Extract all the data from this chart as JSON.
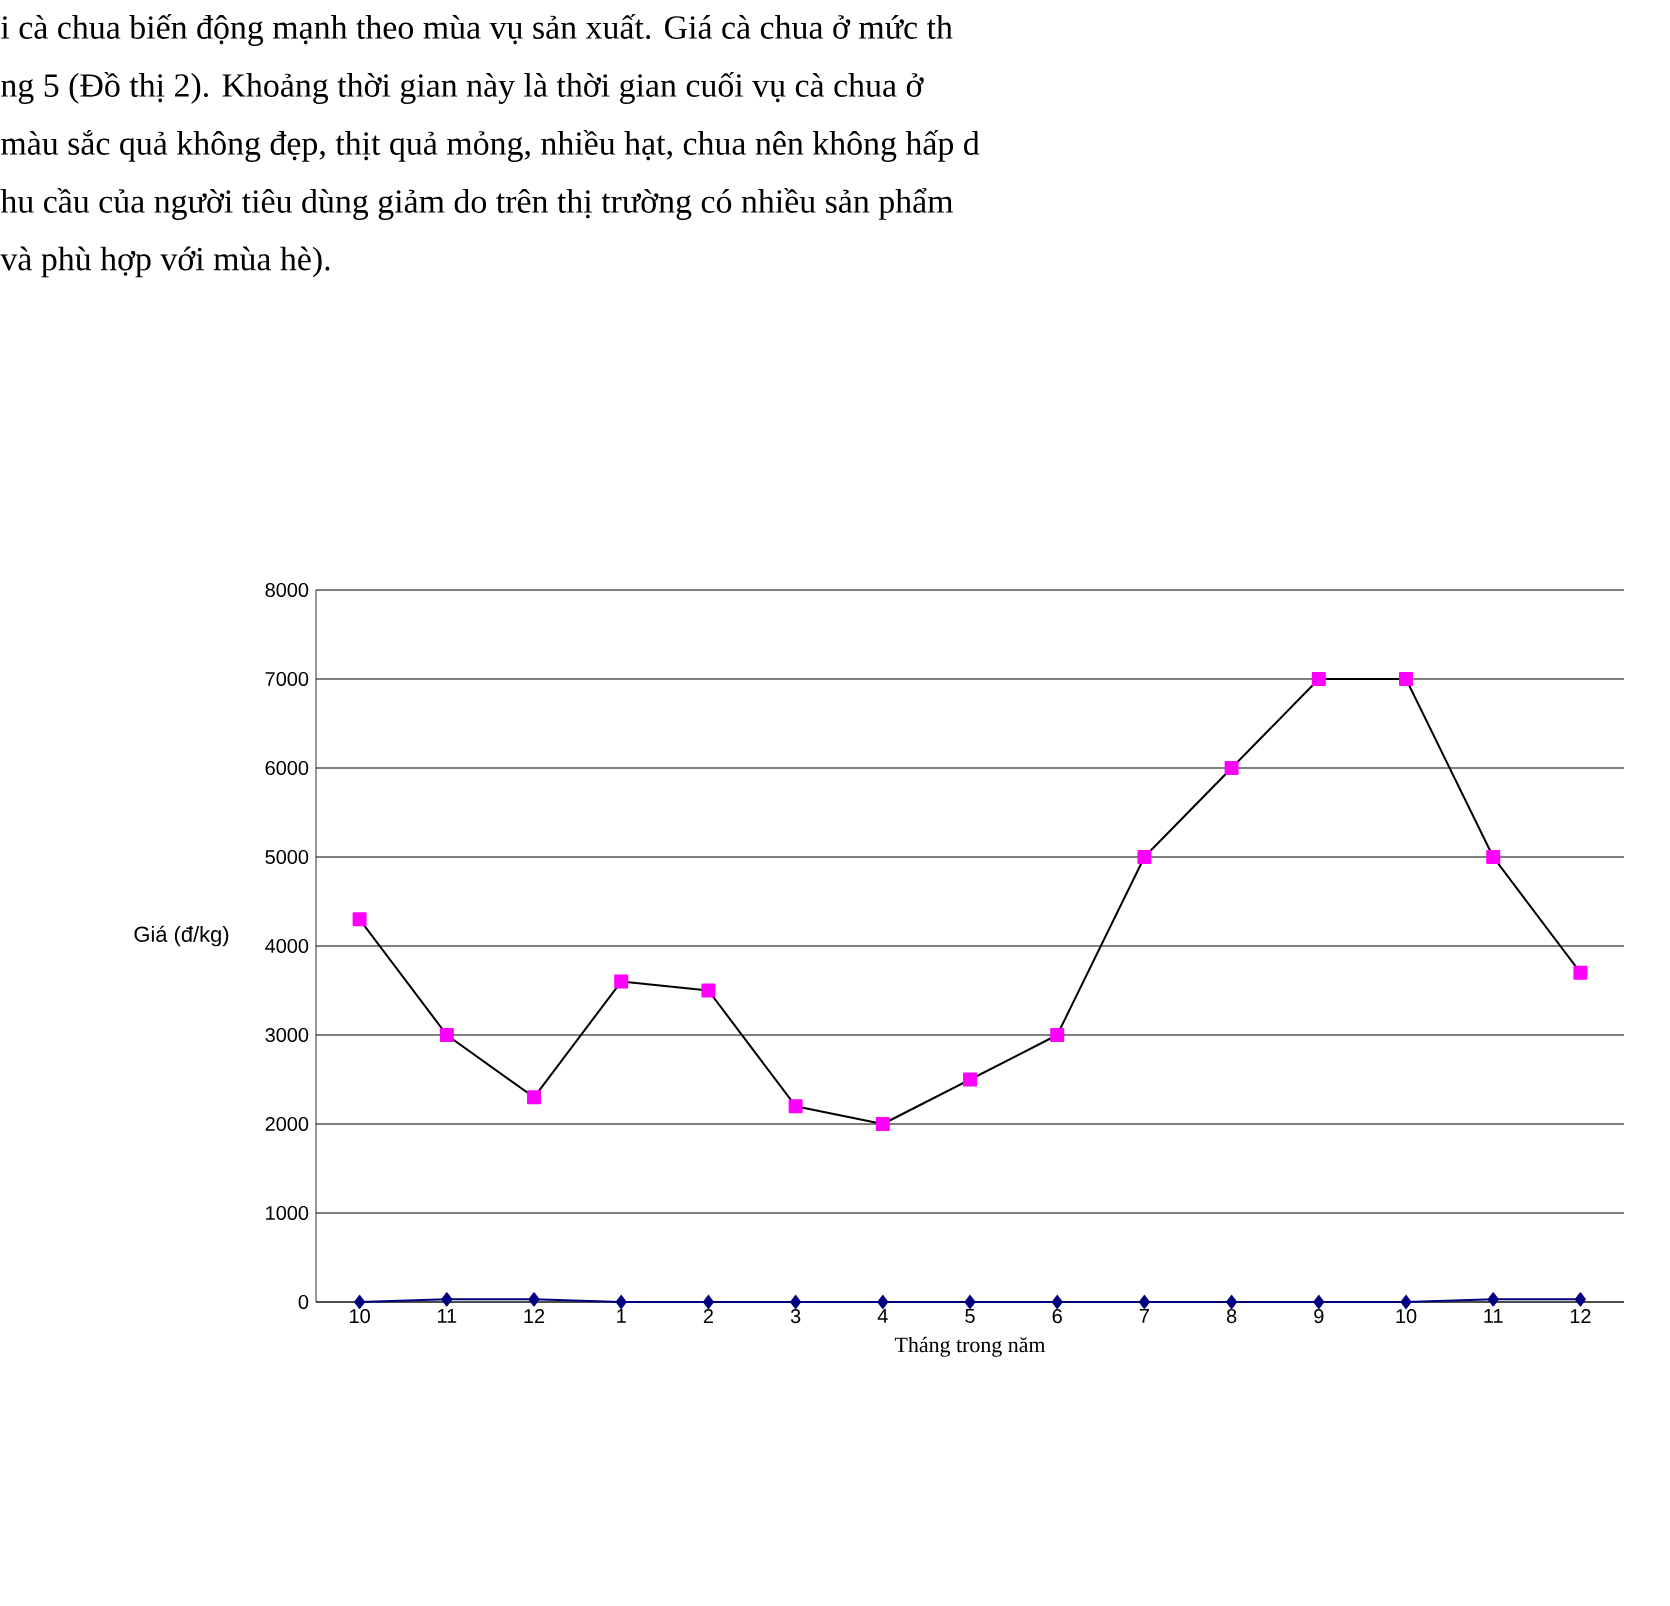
{
  "chart_data": {
    "type": "line",
    "annotations": [
      "i cà chua biến động mạnh theo mùa vụ sản xuất. Giá cà chua ở mức th",
      "ng 5 (Đồ thị 2). Khoảng thời gian này là thời gian cuối vụ cà chua ở",
      "màu sắc quả không đẹp, thịt quả mỏng, nhiều hạt, chua nên không hấp d",
      "hu cầu của người tiêu dùng giảm do trên thị trường có nhiều sản phẩm",
      "và phù hợp với mùa hè)."
    ],
    "xlabel": "Tháng trong năm",
    "ylabel": "Giá (đ/kg)",
    "categories": [
      "10",
      "11",
      "12",
      "1",
      "2",
      "3",
      "4",
      "5",
      "6",
      "7",
      "8",
      "9",
      "10",
      "11",
      "12"
    ],
    "series": [
      {
        "color": "#ff00ff",
        "marker": "square",
        "values": [
          4300,
          3000,
          2300,
          3600,
          3500,
          2200,
          2000,
          2500,
          3000,
          5000,
          6000,
          7000,
          7000,
          5000,
          3700
        ]
      },
      {
        "color": "#000080",
        "marker": "diamond",
        "values": [
          0,
          30,
          30,
          0,
          0,
          0,
          0,
          0,
          0,
          0,
          0,
          0,
          0,
          30,
          30
        ]
      }
    ],
    "ylim": [
      0,
      8000
    ],
    "yticks": [
      0,
      1000,
      2000,
      3000,
      4000,
      5000,
      6000,
      7000,
      8000
    ],
    "grid": "y"
  }
}
